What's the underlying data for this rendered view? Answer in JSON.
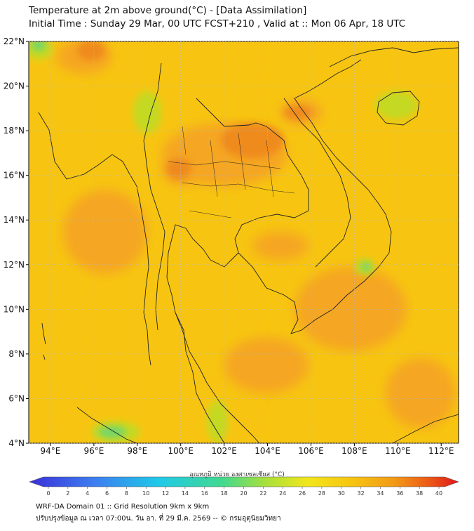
{
  "header": {
    "title_line1": "Temperature at 2m above ground(°C) - [Data Assimilation]",
    "title_line2": "Initial Time : Sunday 29 Mar, 00 UTC FCST+210 , Valid at :: Mon 06 Apr, 18 UTC"
  },
  "map": {
    "lat_labels": [
      "22°N",
      "20°N",
      "18°N",
      "16°N",
      "14°N",
      "12°N",
      "10°N",
      "8°N",
      "6°N",
      "4°N"
    ],
    "lon_labels": [
      "94°E",
      "96°E",
      "98°E",
      "100°E",
      "102°E",
      "104°E",
      "106°E",
      "108°E",
      "110°E",
      "112°E"
    ],
    "colors": {
      "base": "#f7c511",
      "warm": "#f5a623",
      "hot": "#ef8a1a",
      "cool": "#c4d923",
      "coolest": "#6fd56f"
    }
  },
  "colorbar": {
    "title": "อุณหภูมิ หน่วย องศาเซลเซียส (°C)",
    "ticks": [
      "0",
      "2",
      "4",
      "6",
      "8",
      "10",
      "12",
      "14",
      "16",
      "18",
      "20",
      "22",
      "24",
      "26",
      "28",
      "30",
      "32",
      "34",
      "36",
      "38",
      "40"
    ]
  },
  "footer": {
    "line1": "WRF-DA Domain 01 :: Grid Resolution 9km x 9km",
    "line2": "ปรับปรุงข้อมูล ณ เวลา 07:00น. วัน อา. ที่ 29 มี.ค. 2569 -- © กรมอุตุนิยมวิทยา"
  }
}
